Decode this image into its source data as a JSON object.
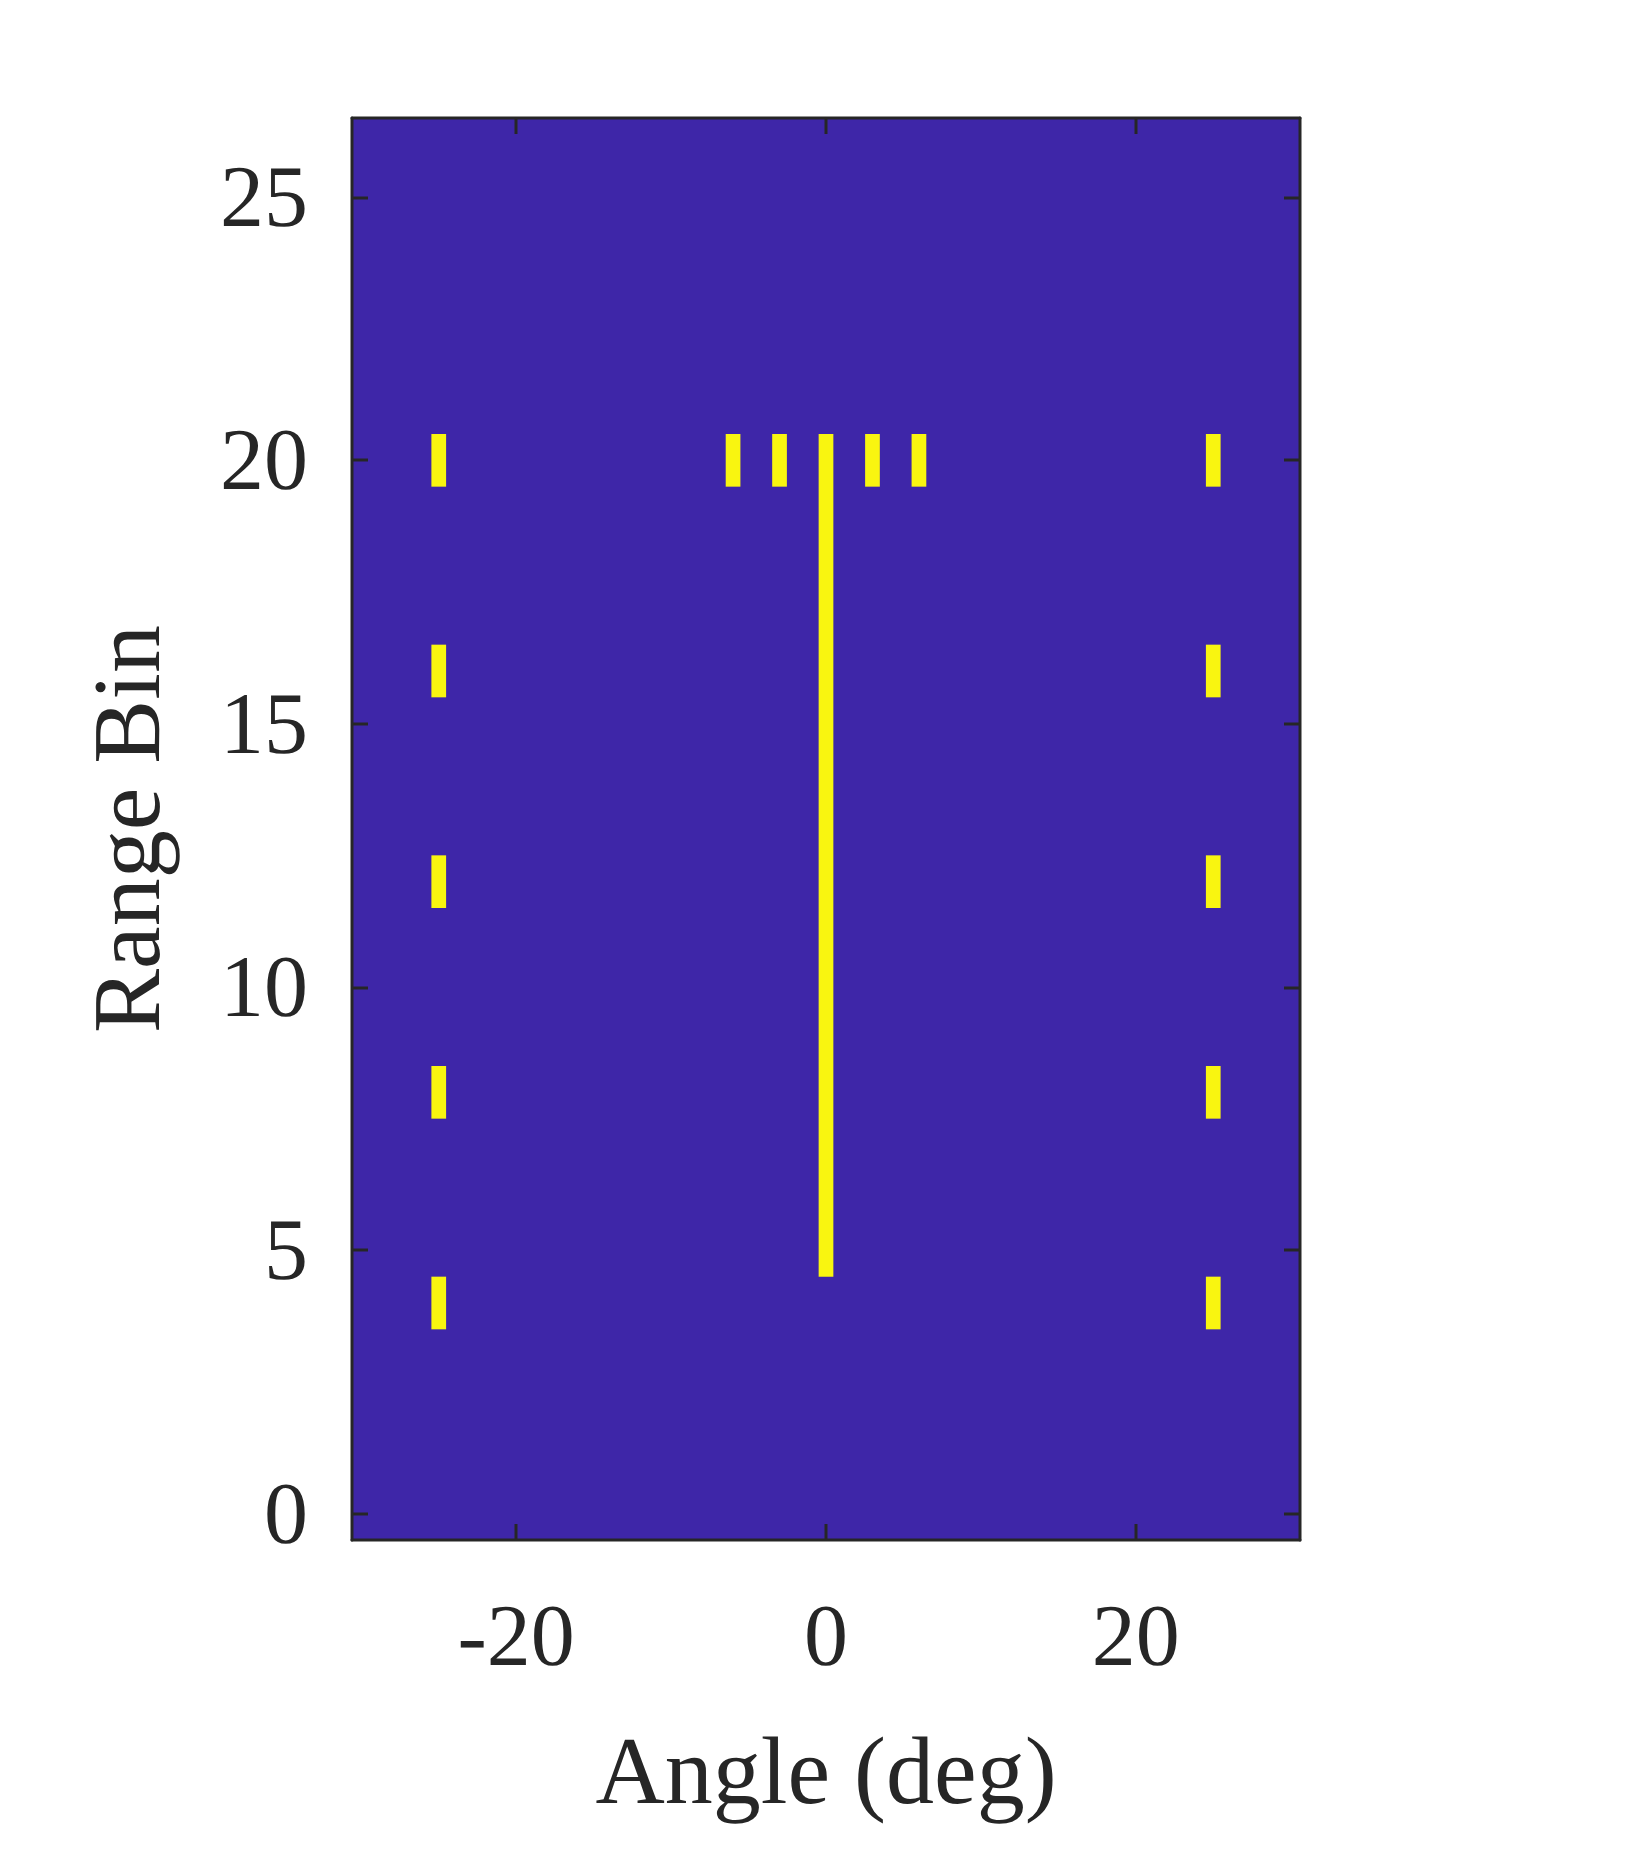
{
  "chart_data": {
    "type": "bar",
    "xlabel": "Angle (deg)",
    "ylabel": "Range Bin",
    "grid": false,
    "xlim": [
      -30.6,
      30.6
    ],
    "xticks": [
      -20,
      0,
      20
    ],
    "ylim": [
      -0.5,
      26.5
    ],
    "yticks": [
      0,
      5,
      10,
      15,
      20,
      25
    ],
    "series": [
      {
        "color": "#f9f510",
        "x": [
          -25,
          -6,
          -3,
          0,
          3,
          6,
          25
        ],
        "base": [
          19.5,
          19.5,
          19.5,
          4.5,
          19.5,
          19.5,
          19.5
        ],
        "values": [
          1,
          1,
          1,
          16,
          1,
          1,
          1
        ]
      },
      {
        "color": "#f9f510",
        "x": [
          -25,
          25
        ],
        "base": [
          15.5,
          15.5
        ],
        "values": [
          1,
          1
        ]
      },
      {
        "color": "#f9f510",
        "x": [
          -25,
          25
        ],
        "base": [
          11.5,
          11.5
        ],
        "values": [
          1,
          1
        ]
      },
      {
        "color": "#f9f510",
        "x": [
          -25,
          25
        ],
        "base": [
          7.5,
          7.5
        ],
        "values": [
          1,
          1
        ]
      },
      {
        "color": "#f9f510",
        "x": [
          -25,
          25
        ],
        "base": [
          3.5,
          3.5
        ],
        "values": [
          1,
          1
        ]
      }
    ]
  }
}
